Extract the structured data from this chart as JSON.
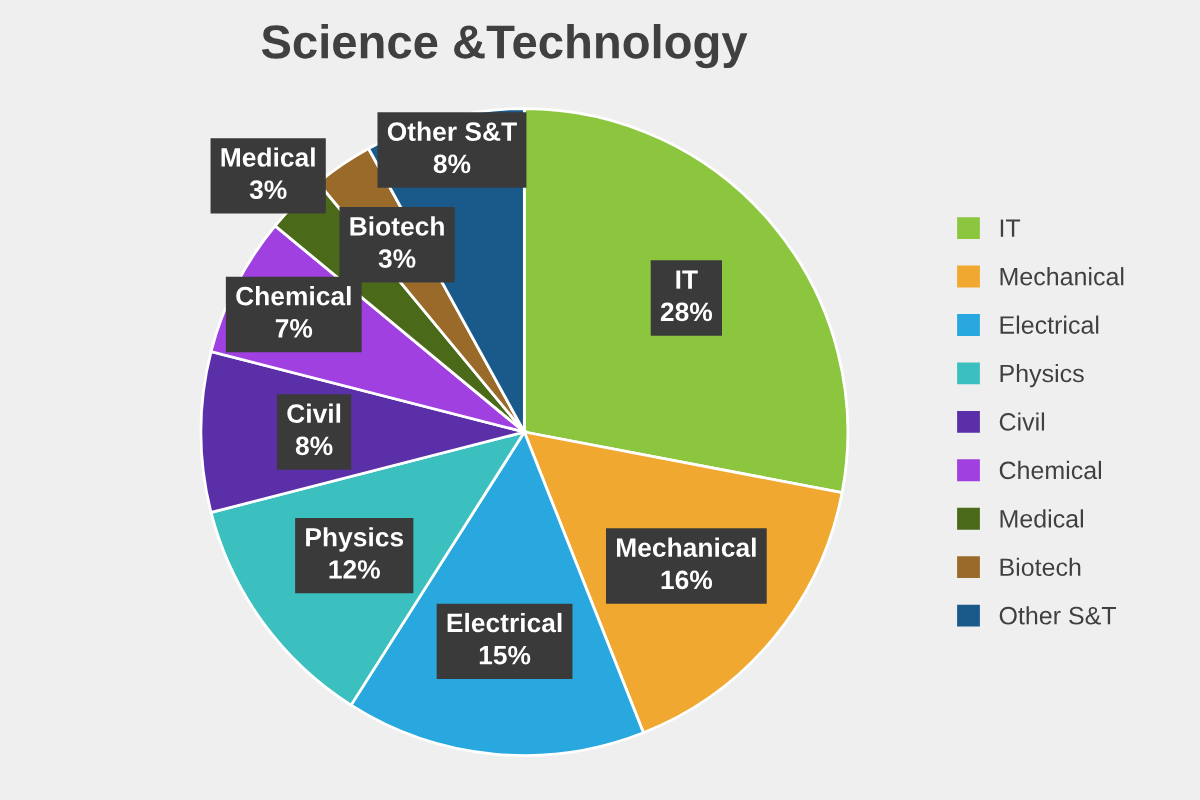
{
  "chart_data": {
    "type": "pie",
    "title": "Science &Technology",
    "categories": [
      "IT",
      "Mechanical",
      "Electrical",
      "Physics",
      "Civil",
      "Chemical",
      "Medical",
      "Biotech",
      "Other S&T"
    ],
    "values": [
      28,
      16,
      15,
      12,
      8,
      7,
      3,
      3,
      8
    ],
    "value_labels": [
      "28%",
      "16%",
      "15%",
      "12%",
      "8%",
      "7%",
      "3%",
      "3%",
      "8%"
    ],
    "colors": [
      "#8cc63f",
      "#f0a830",
      "#29a8e0",
      "#3cbfbf",
      "#5b2fa8",
      "#a040e0",
      "#4a6a1a",
      "#9a6a2a",
      "#1a5a8a"
    ],
    "legend": "right"
  }
}
